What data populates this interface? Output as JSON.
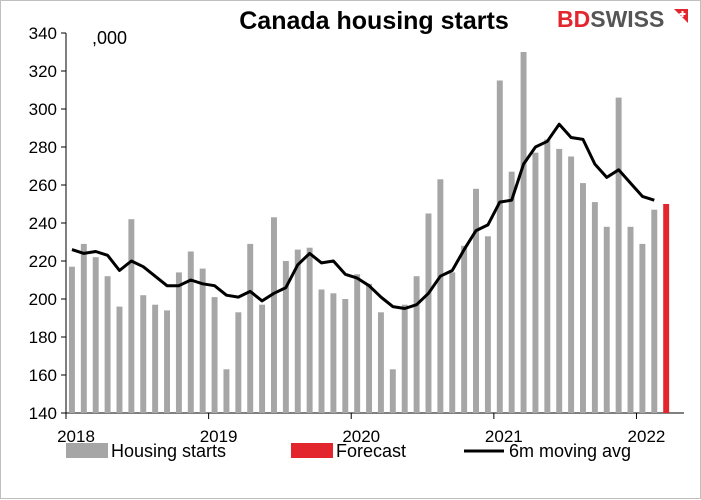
{
  "chart_data": {
    "type": "bar",
    "title": "Canada housing starts",
    "unit_label": ",000",
    "ylim": [
      140,
      340
    ],
    "y_ticks": [
      140,
      160,
      180,
      200,
      220,
      240,
      260,
      280,
      300,
      320,
      340
    ],
    "x_tick_labels": [
      "2018",
      "2019",
      "2020",
      "2021",
      "2022"
    ],
    "x_start": "2018-01",
    "series": [
      {
        "name": "Housing starts",
        "type": "bar",
        "color": "#a6a6a6",
        "values": [
          217,
          229,
          222,
          212,
          196,
          242,
          202,
          197,
          194,
          214,
          225,
          216,
          201,
          163,
          193,
          229,
          197,
          243,
          220,
          226,
          227,
          205,
          203,
          200,
          213,
          208,
          193,
          163,
          197,
          212,
          245,
          263,
          214,
          228,
          258,
          233,
          315,
          267,
          330,
          277,
          284,
          279,
          275,
          261,
          251,
          238,
          306,
          238,
          229,
          247
        ]
      },
      {
        "name": "Forecast",
        "type": "bar",
        "color": "#e3262e",
        "values": [
          250
        ]
      },
      {
        "name": "6m moving avg",
        "type": "line",
        "color": "#000000",
        "values": [
          226,
          224,
          225,
          223,
          215,
          220,
          217,
          212,
          207,
          207,
          210,
          208,
          207,
          202,
          201,
          204,
          199,
          203,
          206,
          218,
          224,
          219,
          220,
          213,
          211,
          207,
          201,
          196,
          195,
          197,
          203,
          212,
          215,
          226,
          236,
          239,
          251,
          252,
          271,
          280,
          283,
          292,
          285,
          284,
          271,
          264,
          268,
          261,
          254,
          252
        ]
      }
    ],
    "legend_position": "bottom",
    "grid": false
  },
  "logo": {
    "part1": "BD",
    "part2": "SWISS"
  }
}
